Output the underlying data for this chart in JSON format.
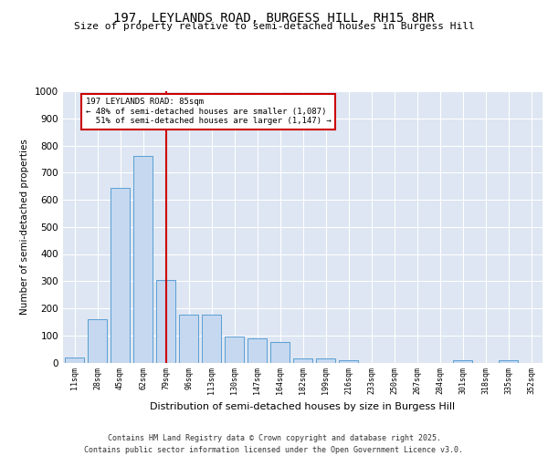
{
  "title_line1": "197, LEYLANDS ROAD, BURGESS HILL, RH15 8HR",
  "title_line2": "Size of property relative to semi-detached houses in Burgess Hill",
  "xlabel": "Distribution of semi-detached houses by size in Burgess Hill",
  "ylabel": "Number of semi-detached properties",
  "categories": [
    "11sqm",
    "28sqm",
    "45sqm",
    "62sqm",
    "79sqm",
    "96sqm",
    "113sqm",
    "130sqm",
    "147sqm",
    "164sqm",
    "182sqm",
    "199sqm",
    "216sqm",
    "233sqm",
    "250sqm",
    "267sqm",
    "284sqm",
    "301sqm",
    "318sqm",
    "335sqm",
    "352sqm"
  ],
  "values": [
    20,
    160,
    645,
    760,
    305,
    175,
    175,
    95,
    90,
    75,
    15,
    15,
    10,
    0,
    0,
    0,
    0,
    10,
    0,
    10,
    0
  ],
  "bar_color": "#c5d8f0",
  "bar_edge_color": "#5a9fd4",
  "red_line_x": 4,
  "property_label": "197 LEYLANDS ROAD: 85sqm",
  "pct_smaller": 48,
  "count_smaller": 1087,
  "pct_larger": 51,
  "count_larger": 1147,
  "annotation_box_color": "#ffffff",
  "annotation_box_edge": "#cc0000",
  "red_line_color": "#cc0000",
  "ylim": [
    0,
    1000
  ],
  "yticks": [
    0,
    100,
    200,
    300,
    400,
    500,
    600,
    700,
    800,
    900,
    1000
  ],
  "bg_color": "#dde6f2",
  "footer_line1": "Contains HM Land Registry data © Crown copyright and database right 2025.",
  "footer_line2": "Contains public sector information licensed under the Open Government Licence v3.0."
}
